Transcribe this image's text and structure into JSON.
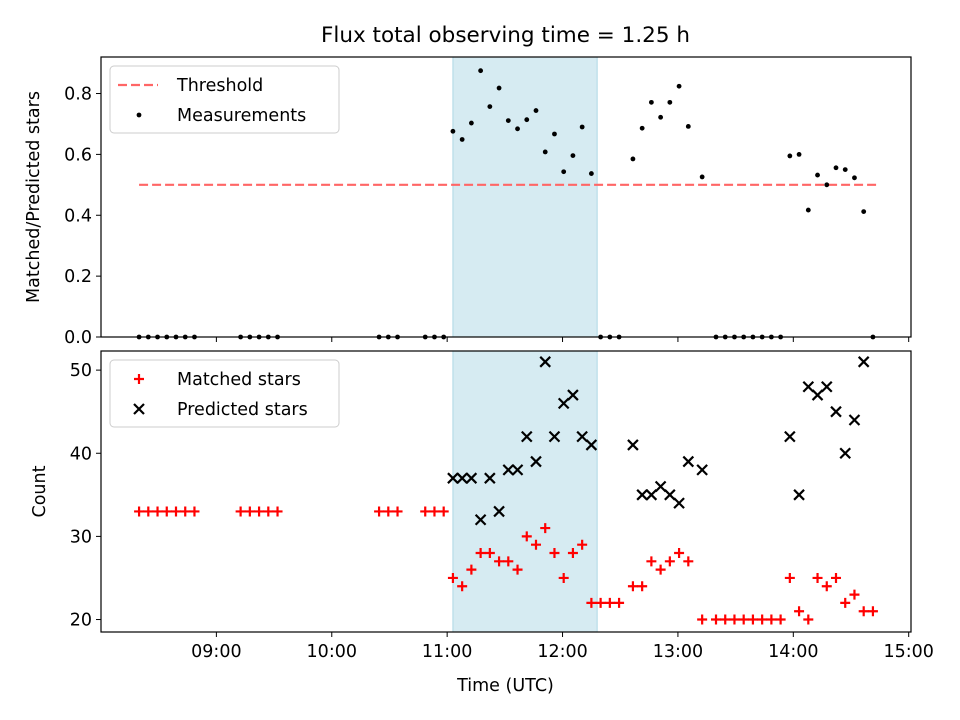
{
  "chart_data": {
    "title": "Flux total observing time = 1.25 h",
    "xlabel": "Time (UTC)",
    "x_unit": "hours UTC",
    "xlim": [
      8.0,
      15.02
    ],
    "x_ticks": [
      {
        "value": 9,
        "label": "09:00"
      },
      {
        "value": 10,
        "label": "10:00"
      },
      {
        "value": 11,
        "label": "11:00"
      },
      {
        "value": 12,
        "label": "12:00"
      },
      {
        "value": 13,
        "label": "13:00"
      },
      {
        "value": 14,
        "label": "14:00"
      },
      {
        "value": 15,
        "label": "15:00"
      }
    ],
    "shaded_span": {
      "x_start": 11.05,
      "x_end": 12.3,
      "color": "#add8e6"
    },
    "panels": [
      {
        "type": "scatter",
        "ylabel": "Matched/Predicted stars",
        "ylim": [
          0,
          0.92
        ],
        "y_ticks": [
          0.0,
          0.2,
          0.4,
          0.6,
          0.8
        ],
        "y_tick_labels": [
          "0.0",
          "0.2",
          "0.4",
          "0.6",
          "0.8"
        ],
        "legend": {
          "position": "top-left",
          "entries": [
            "Threshold",
            "Measurements"
          ]
        },
        "series": [
          {
            "name": "Threshold",
            "kind": "line",
            "style": "dashed",
            "color": "#ff6666",
            "x": [
              8.33,
              14.73
            ],
            "y": [
              0.5,
              0.5
            ]
          },
          {
            "name": "Measurements",
            "kind": "points",
            "color": "#000000",
            "x": [
              8.33,
              8.41,
              8.49,
              8.57,
              8.65,
              8.73,
              8.81,
              9.21,
              9.29,
              9.37,
              9.45,
              9.53,
              10.41,
              10.49,
              10.57,
              10.81,
              10.89,
              10.97,
              11.05,
              11.13,
              11.21,
              11.29,
              11.37,
              11.45,
              11.53,
              11.61,
              11.69,
              11.77,
              11.85,
              11.93,
              12.01,
              12.09,
              12.17,
              12.25,
              12.33,
              12.41,
              12.49,
              12.61,
              12.69,
              12.77,
              12.85,
              12.93,
              13.01,
              13.09,
              13.21,
              13.33,
              13.41,
              13.49,
              13.57,
              13.65,
              13.73,
              13.81,
              13.89,
              13.97,
              14.05,
              14.13,
              14.21,
              14.29,
              14.37,
              14.45,
              14.53,
              14.61,
              14.69
            ],
            "y": [
              0,
              0,
              0,
              0,
              0,
              0,
              0,
              0,
              0,
              0,
              0,
              0,
              0,
              0,
              0,
              0,
              0,
              0,
              0.676,
              0.649,
              0.703,
              0.875,
              0.757,
              0.818,
              0.711,
              0.684,
              0.714,
              0.744,
              0.608,
              0.667,
              0.543,
              0.596,
              0.69,
              0.537,
              0,
              0,
              0,
              0.585,
              0.686,
              0.771,
              0.722,
              0.771,
              0.824,
              0.692,
              0.526,
              0,
              0,
              0,
              0,
              0,
              0,
              0,
              0,
              0.595,
              0.6,
              0.417,
              0.532,
              0.5,
              0.556,
              0.55,
              0.523,
              0.412,
              0
            ]
          }
        ]
      },
      {
        "type": "scatter",
        "ylabel": "Count",
        "ylim": [
          18.5,
          52.3
        ],
        "y_ticks": [
          20,
          30,
          40,
          50
        ],
        "y_tick_labels": [
          "20",
          "30",
          "40",
          "50"
        ],
        "legend": {
          "position": "top-left",
          "entries": [
            "Matched stars",
            "Predicted stars"
          ]
        },
        "series": [
          {
            "name": "Matched stars",
            "kind": "plus",
            "color": "#ff0000",
            "x": [
              8.33,
              8.41,
              8.49,
              8.57,
              8.65,
              8.73,
              8.81,
              9.21,
              9.29,
              9.37,
              9.45,
              9.53,
              10.41,
              10.49,
              10.57,
              10.81,
              10.89,
              10.97,
              11.05,
              11.13,
              11.21,
              11.29,
              11.37,
              11.45,
              11.53,
              11.61,
              11.69,
              11.77,
              11.85,
              11.93,
              12.01,
              12.09,
              12.17,
              12.25,
              12.33,
              12.41,
              12.49,
              12.61,
              12.69,
              12.77,
              12.85,
              12.93,
              13.01,
              13.09,
              13.21,
              13.33,
              13.41,
              13.49,
              13.57,
              13.65,
              13.73,
              13.81,
              13.89,
              13.97,
              14.05,
              14.13,
              14.21,
              14.29,
              14.37,
              14.45,
              14.53,
              14.61,
              14.69
            ],
            "y": [
              33,
              33,
              33,
              33,
              33,
              33,
              33,
              33,
              33,
              33,
              33,
              33,
              33,
              33,
              33,
              33,
              33,
              33,
              25,
              24,
              26,
              28,
              28,
              27,
              27,
              26,
              30,
              29,
              31,
              28,
              25,
              28,
              29,
              22,
              22,
              22,
              22,
              24,
              24,
              27,
              26,
              27,
              28,
              27,
              20,
              20,
              20,
              20,
              20,
              20,
              20,
              20,
              20,
              25,
              21,
              20,
              25,
              24,
              25,
              22,
              23,
              21,
              21
            ]
          },
          {
            "name": "Predicted stars",
            "kind": "cross",
            "color": "#000000",
            "x": [
              11.05,
              11.13,
              11.21,
              11.29,
              11.37,
              11.45,
              11.53,
              11.61,
              11.69,
              11.77,
              11.85,
              11.93,
              12.01,
              12.09,
              12.17,
              12.25,
              12.61,
              12.69,
              12.77,
              12.85,
              12.93,
              13.01,
              13.09,
              13.21,
              13.97,
              14.05,
              14.13,
              14.21,
              14.29,
              14.37,
              14.45,
              14.53,
              14.61
            ],
            "y": [
              37,
              37,
              37,
              32,
              37,
              33,
              38,
              38,
              42,
              39,
              51,
              42,
              46,
              47,
              42,
              41,
              41,
              35,
              35,
              36,
              35,
              34,
              39,
              38,
              42,
              35,
              48,
              47,
              48,
              45,
              40,
              44,
              51
            ]
          }
        ]
      }
    ]
  }
}
